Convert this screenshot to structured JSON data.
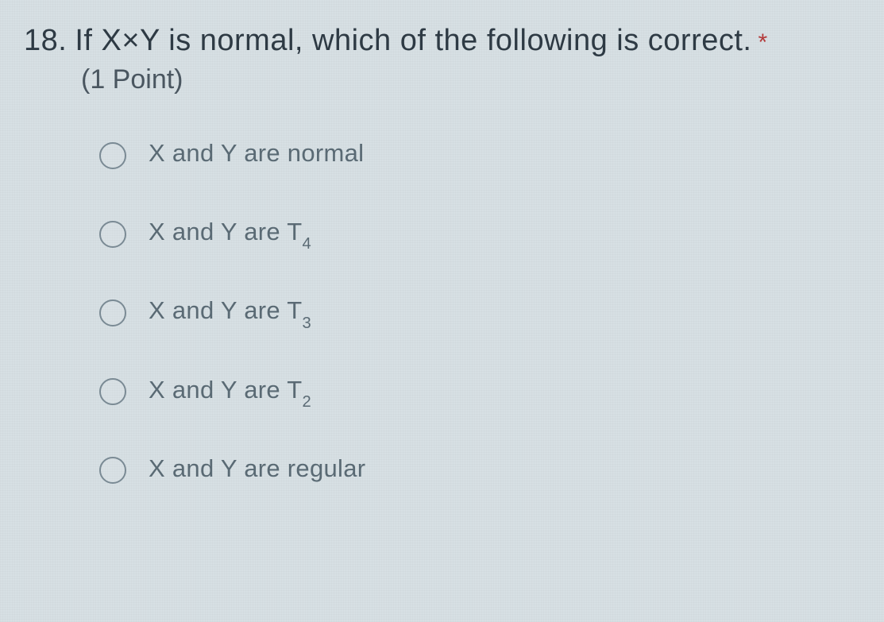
{
  "question": {
    "number": "18.",
    "text_before": "If X×Y is normal, which of the following is correct.",
    "required_marker": "*",
    "points": "(1 Point)"
  },
  "options": [
    {
      "label_plain": "X and Y are normal",
      "sub": ""
    },
    {
      "label_plain": "X and Y are T",
      "sub": "4"
    },
    {
      "label_plain": "X and Y are T",
      "sub": "3"
    },
    {
      "label_plain": "X and Y are T",
      "sub": "2"
    },
    {
      "label_plain": "X and Y are regular",
      "sub": ""
    }
  ],
  "colors": {
    "background": "#d7e0e4",
    "question_text": "#2e3a44",
    "points_text": "#4a5660",
    "option_text": "#5a6a74",
    "radio_border": "#7a8a94",
    "required": "#b33a3a"
  }
}
